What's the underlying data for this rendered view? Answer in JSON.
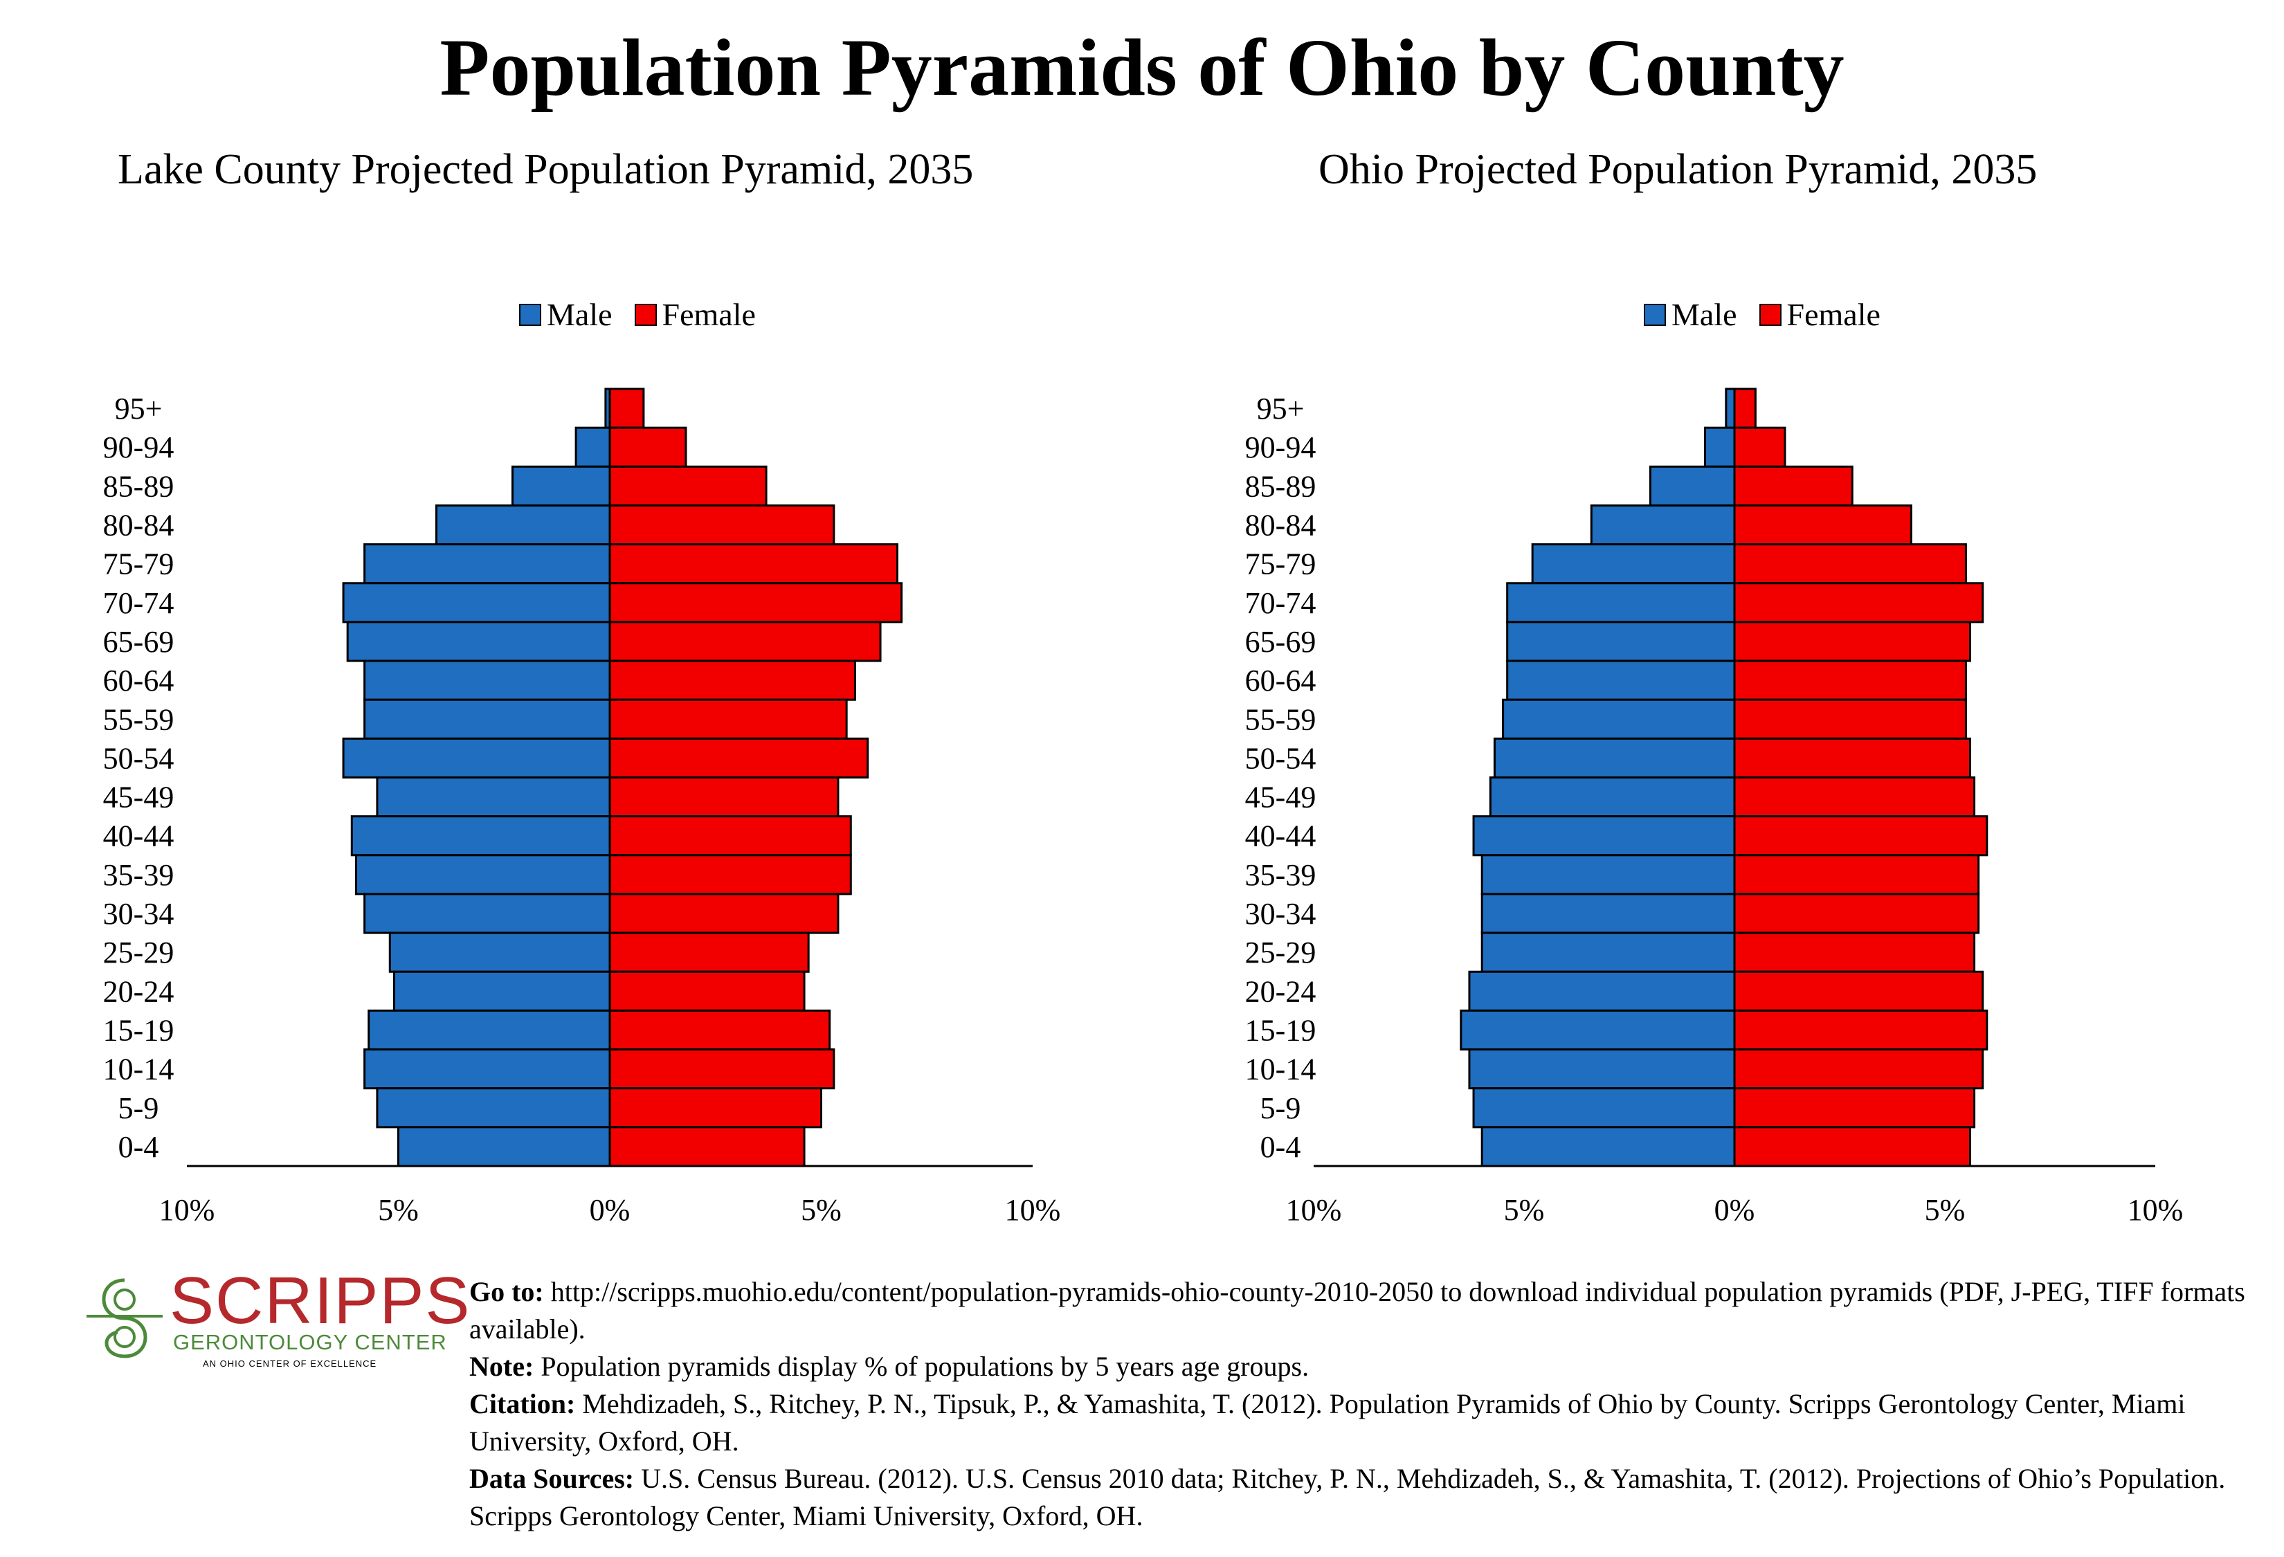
{
  "title": "Population Pyramids of Ohio by County",
  "legend": {
    "male": "Male",
    "female": "Female"
  },
  "colors": {
    "male": "#1f6ebf",
    "female": "#f20000"
  },
  "chart_data": [
    {
      "type": "bar",
      "title": "Lake County Projected Population Pyramid, 2035",
      "categories": [
        "95+",
        "90-94",
        "85-89",
        "80-84",
        "75-79",
        "70-74",
        "65-69",
        "60-64",
        "55-59",
        "50-54",
        "45-49",
        "40-44",
        "35-39",
        "30-34",
        "25-29",
        "20-24",
        "15-19",
        "10-14",
        "5-9",
        "0-4"
      ],
      "series": [
        {
          "name": "Male",
          "values": [
            0.1,
            0.8,
            2.3,
            4.1,
            5.8,
            6.3,
            6.2,
            5.8,
            5.8,
            6.3,
            5.5,
            6.1,
            6.0,
            5.8,
            5.2,
            5.1,
            5.7,
            5.8,
            5.5,
            5.0
          ]
        },
        {
          "name": "Female",
          "values": [
            0.8,
            1.8,
            3.7,
            5.3,
            6.8,
            6.9,
            6.4,
            5.8,
            5.6,
            6.1,
            5.4,
            5.7,
            5.7,
            5.4,
            4.7,
            4.6,
            5.2,
            5.3,
            5.0,
            4.6
          ]
        }
      ],
      "xlim": [
        -10,
        10
      ],
      "xticks": [
        "10%",
        "5%",
        "0%",
        "5%",
        "10%"
      ],
      "legend_position": "top-center"
    },
    {
      "type": "bar",
      "title": "Ohio Projected Population Pyramid, 2035",
      "categories": [
        "95+",
        "90-94",
        "85-89",
        "80-84",
        "75-79",
        "70-74",
        "65-69",
        "60-64",
        "55-59",
        "50-54",
        "45-49",
        "40-44",
        "35-39",
        "30-34",
        "25-29",
        "20-24",
        "15-19",
        "10-14",
        "5-9",
        "0-4"
      ],
      "series": [
        {
          "name": "Male",
          "values": [
            0.2,
            0.7,
            2.0,
            3.4,
            4.8,
            5.4,
            5.4,
            5.4,
            5.5,
            5.7,
            5.8,
            6.2,
            6.0,
            6.0,
            6.0,
            6.3,
            6.5,
            6.3,
            6.2,
            6.0
          ]
        },
        {
          "name": "Female",
          "values": [
            0.5,
            1.2,
            2.8,
            4.2,
            5.5,
            5.9,
            5.6,
            5.5,
            5.5,
            5.6,
            5.7,
            6.0,
            5.8,
            5.8,
            5.7,
            5.9,
            6.0,
            5.9,
            5.7,
            5.6
          ]
        }
      ],
      "xlim": [
        -10,
        10
      ],
      "xticks": [
        "10%",
        "5%",
        "0%",
        "5%",
        "10%"
      ],
      "legend_position": "top-center"
    }
  ],
  "logo": {
    "name": "SCRIPPS",
    "sub": "GERONTOLOGY CENTER",
    "tagline": "AN OHIO CENTER OF EXCELLENCE"
  },
  "footer": {
    "goto_label": "Go to:",
    "goto_text": "http://scripps.muohio.edu/content/population-pyramids-ohio-county-2010-2050 to download individual population pyramids (PDF, J-PEG, TIFF formats available).",
    "note_label": "Note:",
    "note_text": "Population pyramids display % of populations by 5 years age groups.",
    "citation_label": "Citation:",
    "citation_text": "Mehdizadeh, S., Ritchey, P. N., Tipsuk, P., & Yamashita, T. (2012). Population Pyramids of Ohio by County. Scripps Gerontology Center, Miami University, Oxford, OH.",
    "sources_label": "Data Sources:",
    "sources_text": "U.S. Census Bureau. (2012). U.S. Census 2010 data; Ritchey, P. N., Mehdizadeh, S., & Yamashita, T. (2012). Projections of Ohio’s Population. Scripps Gerontology Center, Miami University, Oxford, OH."
  }
}
